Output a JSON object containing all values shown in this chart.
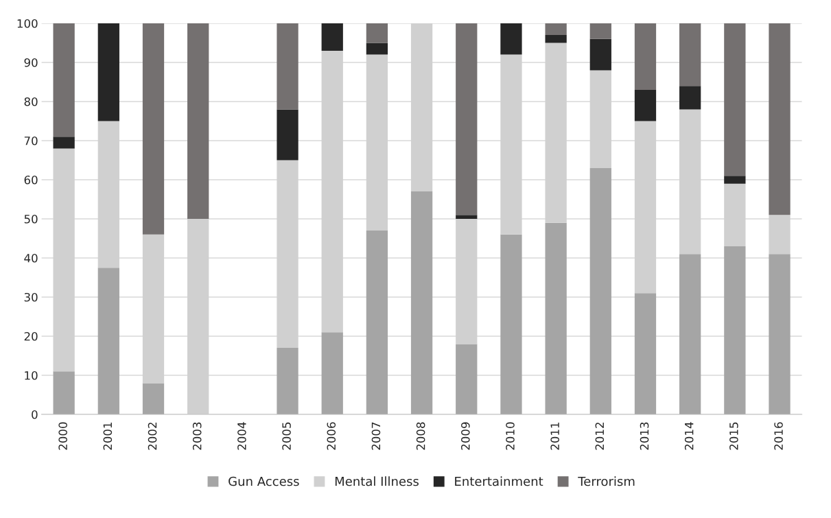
{
  "chart_data": {
    "type": "bar",
    "stacked": true,
    "categories": [
      "2000",
      "2001",
      "2002",
      "2003",
      "2004",
      "2005",
      "2006",
      "2007",
      "2008",
      "2009",
      "2010",
      "2011",
      "2012",
      "2013",
      "2014",
      "2015",
      "2016"
    ],
    "series": [
      {
        "name": "Gun Access",
        "color": "#a5a5a5",
        "values": [
          11,
          37.5,
          8,
          0,
          0,
          17,
          21,
          47,
          57,
          18,
          46,
          49,
          63,
          31,
          41,
          43,
          41
        ]
      },
      {
        "name": "Mental Illness",
        "color": "#d0d0d0",
        "values": [
          57,
          37.5,
          38,
          50,
          0,
          48,
          72,
          45,
          43,
          32,
          46,
          46,
          25,
          44,
          37,
          16,
          10
        ]
      },
      {
        "name": "Entertainment",
        "color": "#262626",
        "values": [
          3,
          25,
          0,
          0,
          0,
          13,
          7,
          3,
          0,
          1,
          8,
          2,
          8,
          8,
          6,
          2,
          0
        ]
      },
      {
        "name": "Terrorism",
        "color": "#747070",
        "values": [
          29,
          0,
          54,
          50,
          0,
          22,
          0,
          5,
          0,
          49,
          0,
          3,
          4,
          17,
          16,
          39,
          49
        ]
      }
    ],
    "ylim": [
      0,
      100
    ],
    "yticks": [
      0,
      10,
      20,
      30,
      40,
      50,
      60,
      70,
      80,
      90,
      100
    ],
    "grid": "y",
    "legend": "bottom"
  }
}
